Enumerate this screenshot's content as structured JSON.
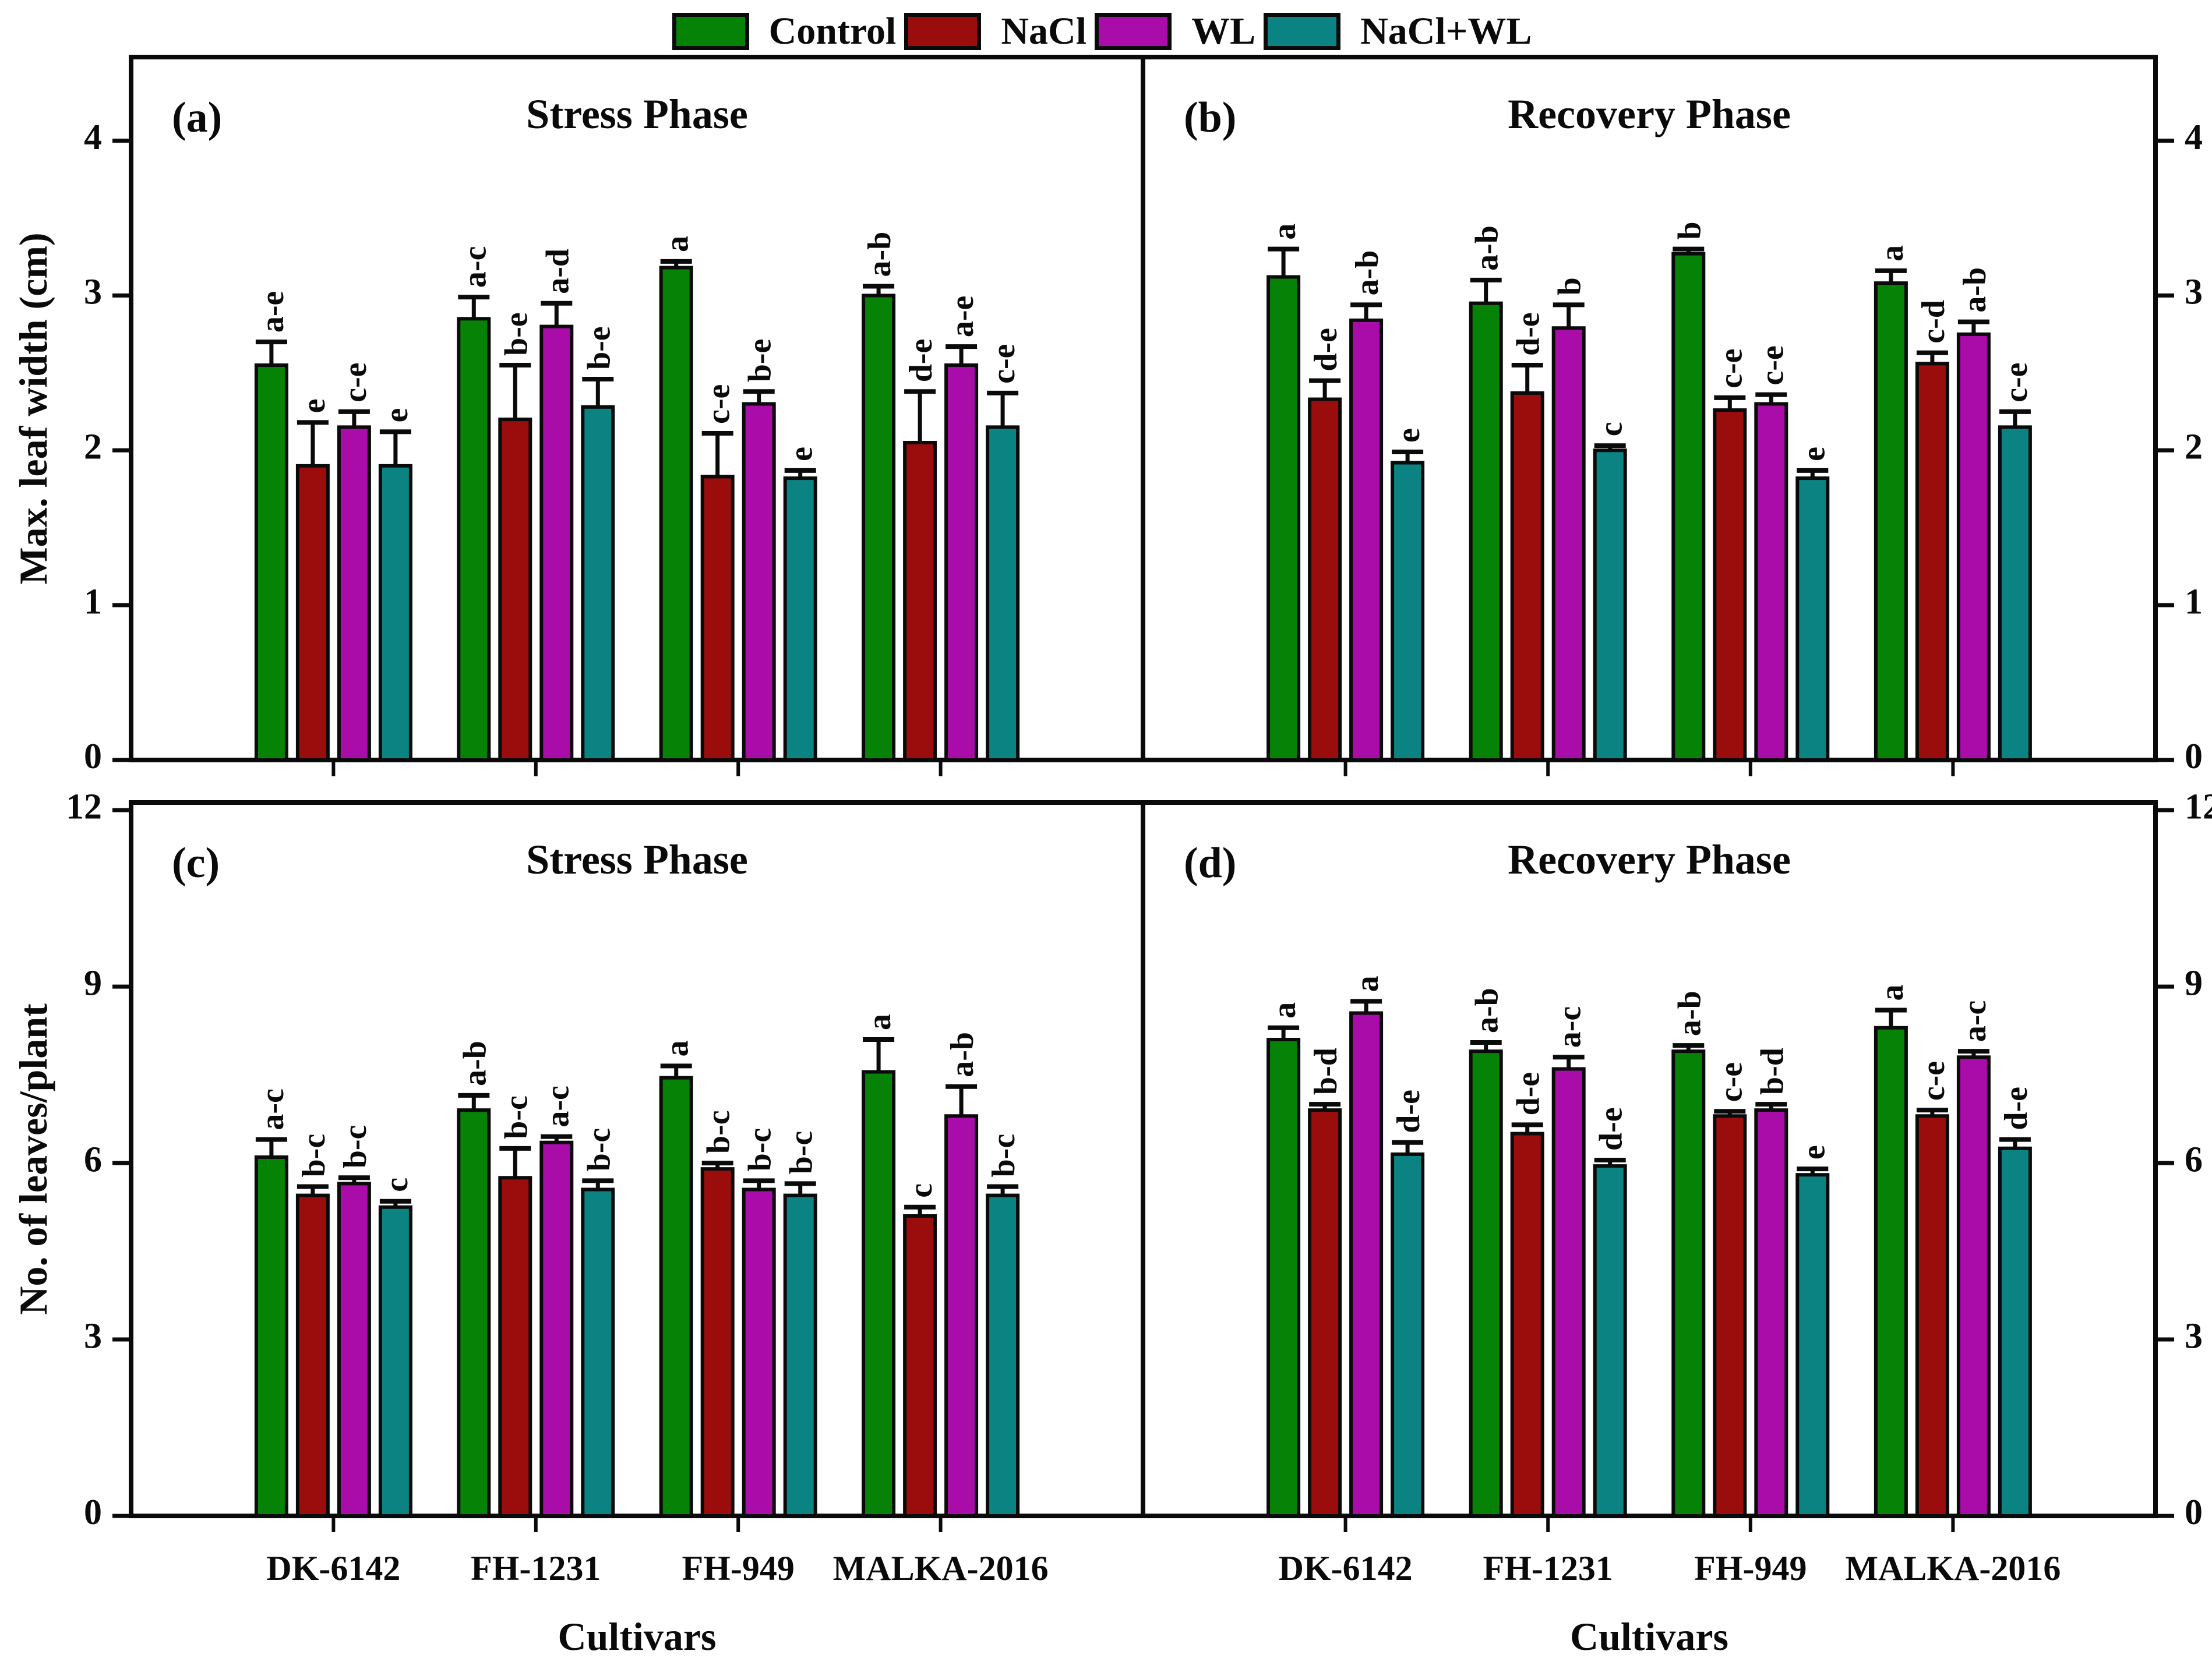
{
  "figure": {
    "legend": {
      "items": [
        {
          "label": "Control",
          "color": "#068206"
        },
        {
          "label": "NaCl",
          "color": "#9b0d0d"
        },
        {
          "label": "WL",
          "color": "#aa0caa"
        },
        {
          "label": "NaCl+WL",
          "color": "#0c8383"
        }
      ]
    },
    "x_axis_title": "Cultivars",
    "y_axis_title_top": "Max. leaf width (cm)",
    "y_axis_title_bottom": "No. of leaves/plant"
  },
  "chart_data": [
    {
      "type": "bar",
      "panel": "(a)",
      "title": "Stress Phase",
      "ylabel": "Max. leaf width (cm)",
      "ylim": [
        0,
        4.54
      ],
      "yticks": [
        0,
        1,
        2,
        3,
        4
      ],
      "grid": false,
      "legend_position": "top-center-shared",
      "categories": [
        "DK-6142",
        "FH-1231",
        "FH-949",
        "MALKA-2016"
      ],
      "series": [
        {
          "name": "Control",
          "color": "#068206",
          "values": [
            2.55,
            2.85,
            3.18,
            3.0
          ],
          "errors": [
            0.15,
            0.14,
            0.04,
            0.06
          ],
          "letters": [
            "a-e",
            "a-c",
            "a",
            "a-b"
          ]
        },
        {
          "name": "NaCl",
          "color": "#9b0d0d",
          "values": [
            1.9,
            2.2,
            1.83,
            2.05
          ],
          "errors": [
            0.28,
            0.35,
            0.28,
            0.33
          ],
          "letters": [
            "e",
            "b-e",
            "c-e",
            "d-e"
          ]
        },
        {
          "name": "WL",
          "color": "#aa0caa",
          "values": [
            2.15,
            2.8,
            2.3,
            2.55
          ],
          "errors": [
            0.1,
            0.15,
            0.08,
            0.12
          ],
          "letters": [
            "c-e",
            "a-d",
            "b-e",
            "a-e"
          ]
        },
        {
          "name": "NaCl+WL",
          "color": "#0c8383",
          "values": [
            1.9,
            2.28,
            1.82,
            2.15
          ],
          "errors": [
            0.22,
            0.18,
            0.05,
            0.22
          ],
          "letters": [
            "e",
            "b-e",
            "e",
            "c-e"
          ]
        }
      ]
    },
    {
      "type": "bar",
      "panel": "(b)",
      "title": "Recovery Phase",
      "ylabel": "Max. leaf width (cm)",
      "ylim": [
        0,
        4.54
      ],
      "yticks": [
        0,
        1,
        2,
        3,
        4
      ],
      "grid": false,
      "categories": [
        "DK-6142",
        "FH-1231",
        "FH-949",
        "MALKA-2016"
      ],
      "series": [
        {
          "name": "Control",
          "color": "#068206",
          "values": [
            3.12,
            2.95,
            3.27,
            3.08
          ],
          "errors": [
            0.18,
            0.15,
            0.03,
            0.08
          ],
          "letters": [
            "a",
            "a-b",
            "b",
            "a"
          ]
        },
        {
          "name": "NaCl",
          "color": "#9b0d0d",
          "values": [
            2.33,
            2.37,
            2.26,
            2.56
          ],
          "errors": [
            0.12,
            0.18,
            0.08,
            0.07
          ],
          "letters": [
            "d-e",
            "d-e",
            "c-e",
            "c-d"
          ]
        },
        {
          "name": "WL",
          "color": "#aa0caa",
          "values": [
            2.84,
            2.79,
            2.3,
            2.75
          ],
          "errors": [
            0.1,
            0.15,
            0.06,
            0.08
          ],
          "letters": [
            "a-b",
            "b",
            "c-e",
            "a-b"
          ]
        },
        {
          "name": "NaCl+WL",
          "color": "#0c8383",
          "values": [
            1.92,
            2.0,
            1.82,
            2.15
          ],
          "errors": [
            0.07,
            0.03,
            0.05,
            0.1
          ],
          "letters": [
            "e",
            "c",
            "e",
            "c-e"
          ]
        }
      ]
    },
    {
      "type": "bar",
      "panel": "(c)",
      "title": "Stress Phase",
      "ylabel": "No. of leaves/plant",
      "ylim": [
        0,
        12.13
      ],
      "yticks": [
        0,
        3,
        6,
        9,
        12
      ],
      "grid": false,
      "categories": [
        "DK-6142",
        "FH-1231",
        "FH-949",
        "MALKA-2016"
      ],
      "series": [
        {
          "name": "Control",
          "color": "#068206",
          "values": [
            6.1,
            6.9,
            7.45,
            7.55
          ],
          "errors": [
            0.3,
            0.25,
            0.2,
            0.55
          ],
          "letters": [
            "a-c",
            "a-b",
            "a",
            "a"
          ]
        },
        {
          "name": "NaCl",
          "color": "#9b0d0d",
          "values": [
            5.45,
            5.75,
            5.9,
            5.1
          ],
          "errors": [
            0.15,
            0.5,
            0.1,
            0.15
          ],
          "letters": [
            "b-c",
            "b-c",
            "b-c",
            "c"
          ]
        },
        {
          "name": "WL",
          "color": "#aa0caa",
          "values": [
            5.65,
            6.35,
            5.55,
            6.8
          ],
          "errors": [
            0.1,
            0.1,
            0.15,
            0.5
          ],
          "letters": [
            "b-c",
            "a-c",
            "b-c",
            "a-b"
          ]
        },
        {
          "name": "NaCl+WL",
          "color": "#0c8383",
          "values": [
            5.25,
            5.55,
            5.45,
            5.45
          ],
          "errors": [
            0.1,
            0.15,
            0.2,
            0.15
          ],
          "letters": [
            "c",
            "b-c",
            "b-c",
            "b-c"
          ]
        }
      ]
    },
    {
      "type": "bar",
      "panel": "(d)",
      "title": "Recovery Phase",
      "ylabel": "No. of leaves/plant",
      "ylim": [
        0,
        12.13
      ],
      "yticks": [
        0,
        3,
        6,
        9,
        12
      ],
      "grid": false,
      "categories": [
        "DK-6142",
        "FH-1231",
        "FH-949",
        "MALKA-2016"
      ],
      "series": [
        {
          "name": "Control",
          "color": "#068206",
          "values": [
            8.1,
            7.9,
            7.9,
            8.3
          ],
          "errors": [
            0.2,
            0.15,
            0.1,
            0.3
          ],
          "letters": [
            "a",
            "a-b",
            "a-b",
            "a"
          ]
        },
        {
          "name": "NaCl",
          "color": "#9b0d0d",
          "values": [
            6.9,
            6.5,
            6.8,
            6.8
          ],
          "errors": [
            0.1,
            0.15,
            0.08,
            0.1
          ],
          "letters": [
            "b-d",
            "d-e",
            "c-e",
            "c-e"
          ]
        },
        {
          "name": "WL",
          "color": "#aa0caa",
          "values": [
            8.55,
            7.6,
            6.9,
            7.8
          ],
          "errors": [
            0.2,
            0.2,
            0.1,
            0.1
          ],
          "letters": [
            "a",
            "a-c",
            "b-d",
            "a-c"
          ]
        },
        {
          "name": "NaCl+WL",
          "color": "#0c8383",
          "values": [
            6.15,
            5.95,
            5.8,
            6.25
          ],
          "errors": [
            0.2,
            0.1,
            0.1,
            0.15
          ],
          "letters": [
            "d-e",
            "d-e",
            "e",
            "d-e"
          ]
        }
      ]
    }
  ]
}
